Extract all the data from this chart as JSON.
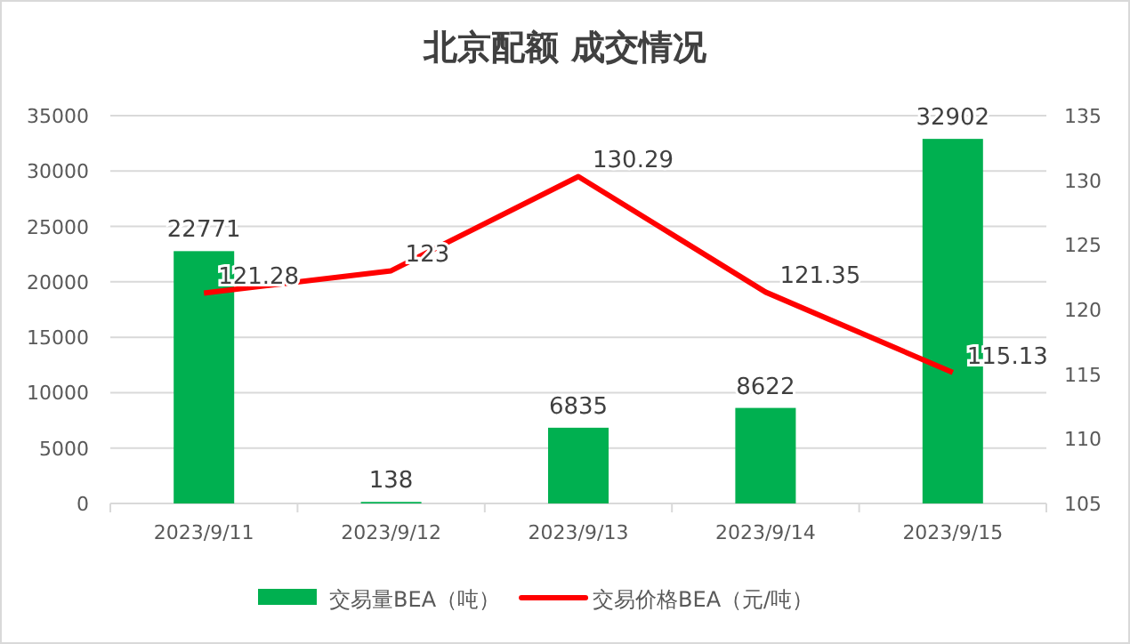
{
  "chart_data": {
    "type": "bar",
    "title": "北京配额 成交情况",
    "categories": [
      "2023/9/11",
      "2023/9/12",
      "2023/9/13",
      "2023/9/14",
      "2023/9/15"
    ],
    "series": [
      {
        "name": "交易量BEA（吨）",
        "color": "#00b050",
        "values": [
          22771,
          138,
          6835,
          8622,
          32902
        ]
      },
      {
        "name": "交易价格BEA（元/吨）",
        "type": "line",
        "axis": "y2",
        "color": "#ff0000",
        "values": [
          121.28,
          123,
          130.29,
          121.35,
          115.13
        ]
      }
    ],
    "ylim": [
      0,
      35000
    ],
    "yticks": [
      0,
      5000,
      10000,
      15000,
      20000,
      25000,
      30000,
      35000
    ],
    "y2lim": [
      105,
      135
    ],
    "y2ticks": [
      105,
      110,
      115,
      120,
      125,
      130,
      135
    ],
    "grid": "y",
    "legend": "bottom",
    "data_labels": true,
    "marker": "none"
  }
}
